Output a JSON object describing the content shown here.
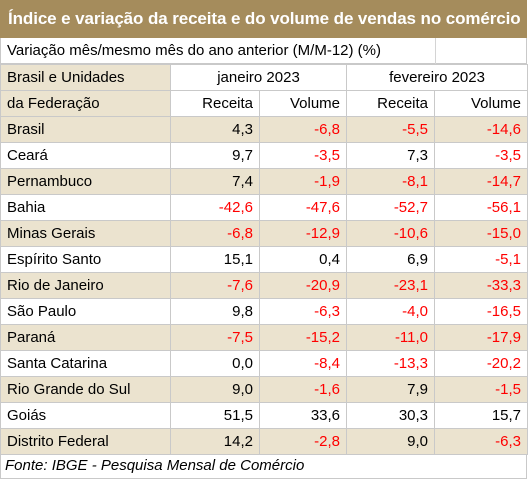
{
  "title": "Índice e variação da receita e do volume de vendas no comércio",
  "subtitle": "Variação mês/mesmo mês do ano anterior (M/M-12) (%)",
  "header": {
    "row_label_line1": "Brasil e Unidades",
    "row_label_line2": "da Federação",
    "period1": "janeiro 2023",
    "period2": "fevereiro 2023",
    "col_receita": "Receita",
    "col_volume": "Volume"
  },
  "rows": [
    {
      "name": "Brasil",
      "jan_receita": "4,3",
      "jan_volume": "-6,8",
      "fev_receita": "-5,5",
      "fev_volume": "-14,6"
    },
    {
      "name": "Ceará",
      "jan_receita": "9,7",
      "jan_volume": "-3,5",
      "fev_receita": "7,3",
      "fev_volume": "-3,5"
    },
    {
      "name": "Pernambuco",
      "jan_receita": "7,4",
      "jan_volume": "-1,9",
      "fev_receita": "-8,1",
      "fev_volume": "-14,7"
    },
    {
      "name": "Bahia",
      "jan_receita": "-42,6",
      "jan_volume": "-47,6",
      "fev_receita": "-52,7",
      "fev_volume": "-56,1"
    },
    {
      "name": "Minas Gerais",
      "jan_receita": "-6,8",
      "jan_volume": "-12,9",
      "fev_receita": "-10,6",
      "fev_volume": "-15,0"
    },
    {
      "name": "Espírito Santo",
      "jan_receita": "15,1",
      "jan_volume": "0,4",
      "fev_receita": "6,9",
      "fev_volume": "-5,1"
    },
    {
      "name": "Rio de Janeiro",
      "jan_receita": "-7,6",
      "jan_volume": "-20,9",
      "fev_receita": "-23,1",
      "fev_volume": "-33,3"
    },
    {
      "name": "São Paulo",
      "jan_receita": "9,8",
      "jan_volume": "-6,3",
      "fev_receita": "-4,0",
      "fev_volume": "-16,5"
    },
    {
      "name": "Paraná",
      "jan_receita": "-7,5",
      "jan_volume": "-15,2",
      "fev_receita": "-11,0",
      "fev_volume": "-17,9"
    },
    {
      "name": "Santa Catarina",
      "jan_receita": "0,0",
      "jan_volume": "-8,4",
      "fev_receita": "-13,3",
      "fev_volume": "-20,2"
    },
    {
      "name": "Rio Grande do Sul",
      "jan_receita": "9,0",
      "jan_volume": "-1,6",
      "fev_receita": "7,9",
      "fev_volume": "-1,5"
    },
    {
      "name": "Goiás",
      "jan_receita": "51,5",
      "jan_volume": "33,6",
      "fev_receita": "30,3",
      "fev_volume": "15,7"
    },
    {
      "name": "Distrito Federal",
      "jan_receita": "14,2",
      "jan_volume": "-2,8",
      "fev_receita": "9,0",
      "fev_volume": "-6,3"
    }
  ],
  "source": "Fonte: IBGE - Pesquisa Mensal de Comércio",
  "colors": {
    "title_bg": "#a58c5c",
    "band_bg": "#ebe3cf",
    "negative": "#ff0000",
    "positive": "#000000"
  }
}
